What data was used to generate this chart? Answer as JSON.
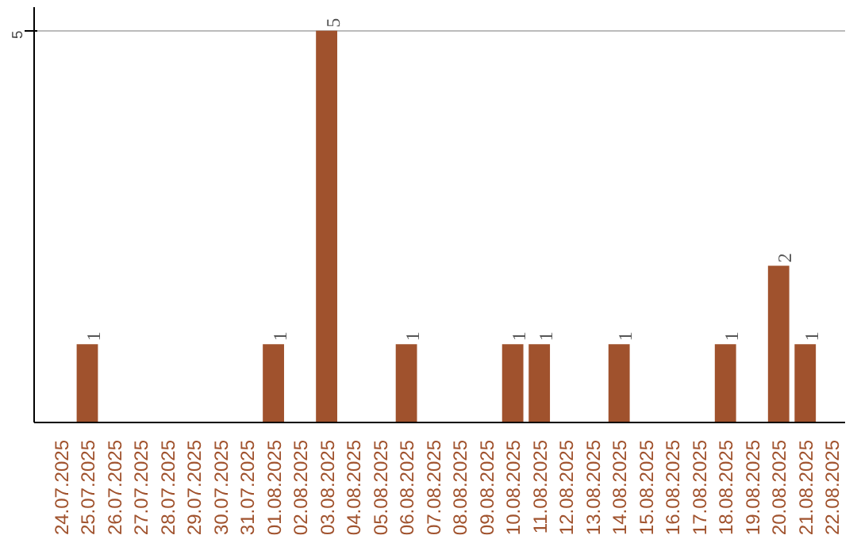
{
  "chart_data": {
    "type": "bar",
    "categories": [
      "24.07.2025",
      "25.07.2025",
      "26.07.2025",
      "27.07.2025",
      "28.07.2025",
      "29.07.2025",
      "30.07.2025",
      "31.07.2025",
      "01.08.2025",
      "02.08.2025",
      "03.08.2025",
      "04.08.2025",
      "05.08.2025",
      "06.08.2025",
      "07.08.2025",
      "08.08.2025",
      "09.08.2025",
      "10.08.2025",
      "11.08.2025",
      "12.08.2025",
      "13.08.2025",
      "14.08.2025",
      "15.08.2025",
      "16.08.2025",
      "17.08.2025",
      "18.08.2025",
      "19.08.2025",
      "20.08.2025",
      "21.08.2025",
      "22.08.2025"
    ],
    "values": [
      0,
      1,
      0,
      0,
      0,
      0,
      0,
      0,
      1,
      0,
      5,
      0,
      0,
      1,
      0,
      0,
      0,
      1,
      1,
      0,
      0,
      1,
      0,
      0,
      0,
      1,
      0,
      2,
      1,
      0
    ],
    "value_labels": [
      null,
      "1",
      null,
      null,
      null,
      null,
      null,
      null,
      "1",
      null,
      "5",
      null,
      null,
      "1",
      null,
      null,
      null,
      "1",
      "1",
      null,
      null,
      "1",
      null,
      null,
      null,
      "1",
      null,
      "2",
      "1",
      null
    ],
    "color": "#a0522d",
    "ylim": [
      0,
      5.3
    ],
    "yticks": [
      5
    ],
    "grid": "y"
  }
}
